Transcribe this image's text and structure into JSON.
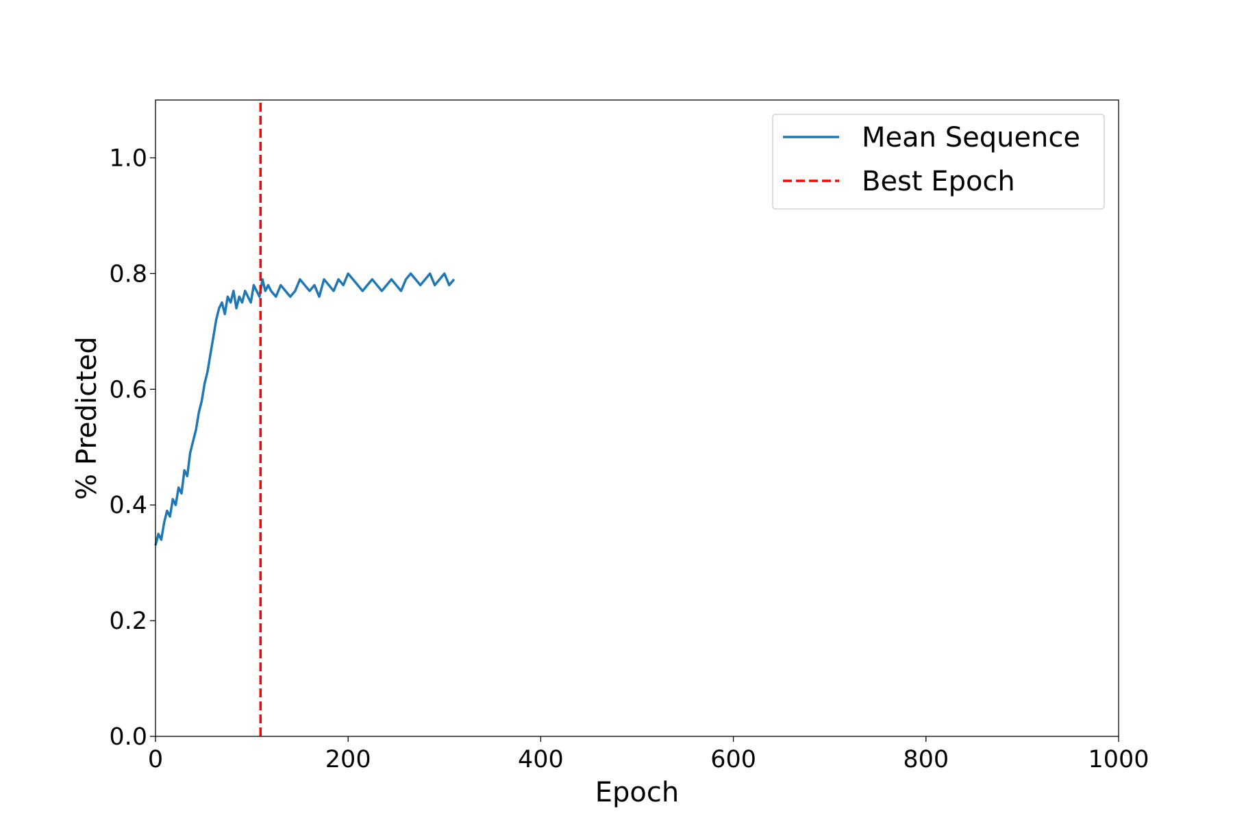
{
  "chart_data": {
    "type": "line",
    "title": "",
    "xlabel": "Epoch",
    "ylabel": "% Predicted",
    "xlim": [
      0,
      1000
    ],
    "ylim": [
      0,
      1.1
    ],
    "xticks": [
      0,
      200,
      400,
      600,
      800,
      1000
    ],
    "xtick_labels": [
      "0",
      "200",
      "400",
      "600",
      "800",
      "1000"
    ],
    "yticks": [
      0.0,
      0.2,
      0.4,
      0.6,
      0.8,
      1.0
    ],
    "ytick_labels": [
      "0.0",
      "0.2",
      "0.4",
      "0.6",
      "0.8",
      "1.0"
    ],
    "grid": false,
    "legend_position": "top-right",
    "series": [
      {
        "name": "Mean Sequence",
        "color": "#1f77b4",
        "style": "solid",
        "x": [
          0,
          3,
          6,
          9,
          12,
          15,
          18,
          21,
          24,
          27,
          30,
          33,
          36,
          39,
          42,
          45,
          48,
          51,
          54,
          57,
          60,
          63,
          66,
          69,
          72,
          75,
          78,
          81,
          84,
          87,
          90,
          93,
          96,
          99,
          102,
          105,
          108,
          111,
          114,
          117,
          120,
          125,
          130,
          135,
          140,
          145,
          150,
          155,
          160,
          165,
          170,
          175,
          180,
          185,
          190,
          195,
          200,
          205,
          210,
          215,
          220,
          225,
          230,
          235,
          240,
          245,
          250,
          255,
          260,
          265,
          270,
          275,
          280,
          285,
          290,
          295,
          300,
          305,
          310
        ],
        "y": [
          0.33,
          0.35,
          0.34,
          0.37,
          0.39,
          0.38,
          0.41,
          0.4,
          0.43,
          0.42,
          0.46,
          0.45,
          0.49,
          0.51,
          0.53,
          0.56,
          0.58,
          0.61,
          0.63,
          0.66,
          0.69,
          0.72,
          0.74,
          0.75,
          0.73,
          0.76,
          0.75,
          0.77,
          0.74,
          0.76,
          0.75,
          0.77,
          0.76,
          0.75,
          0.78,
          0.77,
          0.76,
          0.79,
          0.77,
          0.78,
          0.77,
          0.76,
          0.78,
          0.77,
          0.76,
          0.77,
          0.79,
          0.78,
          0.77,
          0.78,
          0.76,
          0.79,
          0.78,
          0.77,
          0.79,
          0.78,
          0.8,
          0.79,
          0.78,
          0.77,
          0.78,
          0.79,
          0.78,
          0.77,
          0.78,
          0.79,
          0.78,
          0.77,
          0.79,
          0.8,
          0.79,
          0.78,
          0.79,
          0.8,
          0.78,
          0.79,
          0.8,
          0.78,
          0.79
        ]
      },
      {
        "name": "Best Epoch",
        "color": "#ff0000",
        "style": "dashed",
        "x": [
          109,
          109
        ],
        "y": [
          0,
          1.1
        ]
      }
    ]
  }
}
